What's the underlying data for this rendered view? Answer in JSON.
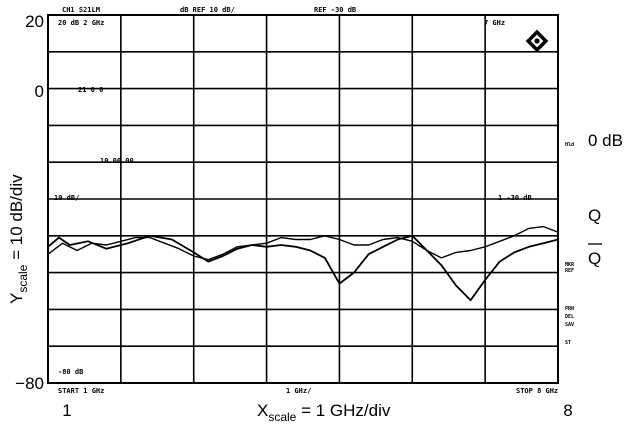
{
  "chart_data": {
    "type": "line",
    "y_ticks": [
      "20",
      "0",
      "−80"
    ],
    "x_ticks": [
      "1",
      "8"
    ],
    "xlim": [
      1,
      8
    ],
    "ylim": [
      -80,
      20
    ],
    "x_divisions": 7,
    "y_divisions": 10,
    "grid": true,
    "ylabel_main": "Y",
    "ylabel_sub": "scale",
    "ylabel_rest": " = 10 dB/div",
    "xlabel_main": "X",
    "xlabel_sub": "scale",
    "xlabel_rest": " = 1 GHz/div",
    "right_labels": {
      "zero": "0 dB",
      "q": "Q",
      "qbar": "Q"
    },
    "series": [
      {
        "name": "Q",
        "x": [
          1.0,
          1.15,
          1.3,
          1.55,
          1.8,
          2.1,
          2.4,
          2.7,
          3.0,
          3.2,
          3.4,
          3.6,
          3.8,
          4.0,
          4.2,
          4.4,
          4.6,
          4.8,
          5.0,
          5.2,
          5.4,
          5.6,
          5.8,
          6.0,
          6.2,
          6.4,
          6.6,
          6.8,
          7.0,
          7.2,
          7.4,
          7.6,
          7.8,
          8.0
        ],
        "y": [
          -43.0,
          -40.5,
          -42.5,
          -41.5,
          -43.5,
          -42.0,
          -40.0,
          -41.0,
          -44.5,
          -47.0,
          -45.5,
          -43.5,
          -42.5,
          -43.0,
          -42.5,
          -43.0,
          -44.0,
          -46.0,
          -53.0,
          -50.0,
          -45.0,
          -43.0,
          -41.0,
          -40.0,
          -44.0,
          -48.0,
          -53.5,
          -57.5,
          -52.0,
          -47.0,
          -44.5,
          -43.0,
          -42.0,
          -41.0
        ]
      },
      {
        "name": "Q-bar",
        "x": [
          1.0,
          1.2,
          1.4,
          1.6,
          1.8,
          2.0,
          2.2,
          2.4,
          2.6,
          2.8,
          3.0,
          3.2,
          3.4,
          3.6,
          3.8,
          4.0,
          4.2,
          4.4,
          4.6,
          4.8,
          5.0,
          5.2,
          5.4,
          5.6,
          5.8,
          6.0,
          6.2,
          6.4,
          6.6,
          6.8,
          7.0,
          7.2,
          7.4,
          7.6,
          7.8,
          8.0
        ],
        "y": [
          -45.0,
          -42.0,
          -44.0,
          -42.0,
          -42.5,
          -41.5,
          -40.5,
          -40.5,
          -42.0,
          -43.5,
          -45.5,
          -46.5,
          -45.0,
          -43.0,
          -42.5,
          -42.0,
          -40.5,
          -41.0,
          -41.0,
          -40.0,
          -41.0,
          -42.5,
          -42.5,
          -41.0,
          -40.5,
          -41.5,
          -44.0,
          -46.0,
          -44.5,
          -44.0,
          -43.0,
          -41.5,
          -40.0,
          -38.0,
          -37.5,
          -39.0
        ]
      }
    ]
  },
  "annotations": {
    "top_row": [
      "CH1 S21LM",
      "dB REF 10 dB/",
      "REF -30 dB"
    ],
    "top_left": "20 dB 2 GHz",
    "top_right": "7 GHz",
    "marker1": "21 0 0",
    "marker2": "10 00 00",
    "marker3": "10 dB/",
    "marker4": "1 -30 dB",
    "bottom_left_note": "-80 dB",
    "bottom_row": [
      "START 1 GHz",
      "1 GHz/",
      "STOP 8 GHz"
    ],
    "right_small": [
      "Hld",
      "MKR",
      "REF",
      "PRN",
      "DEL",
      "SAV",
      "ST"
    ]
  }
}
